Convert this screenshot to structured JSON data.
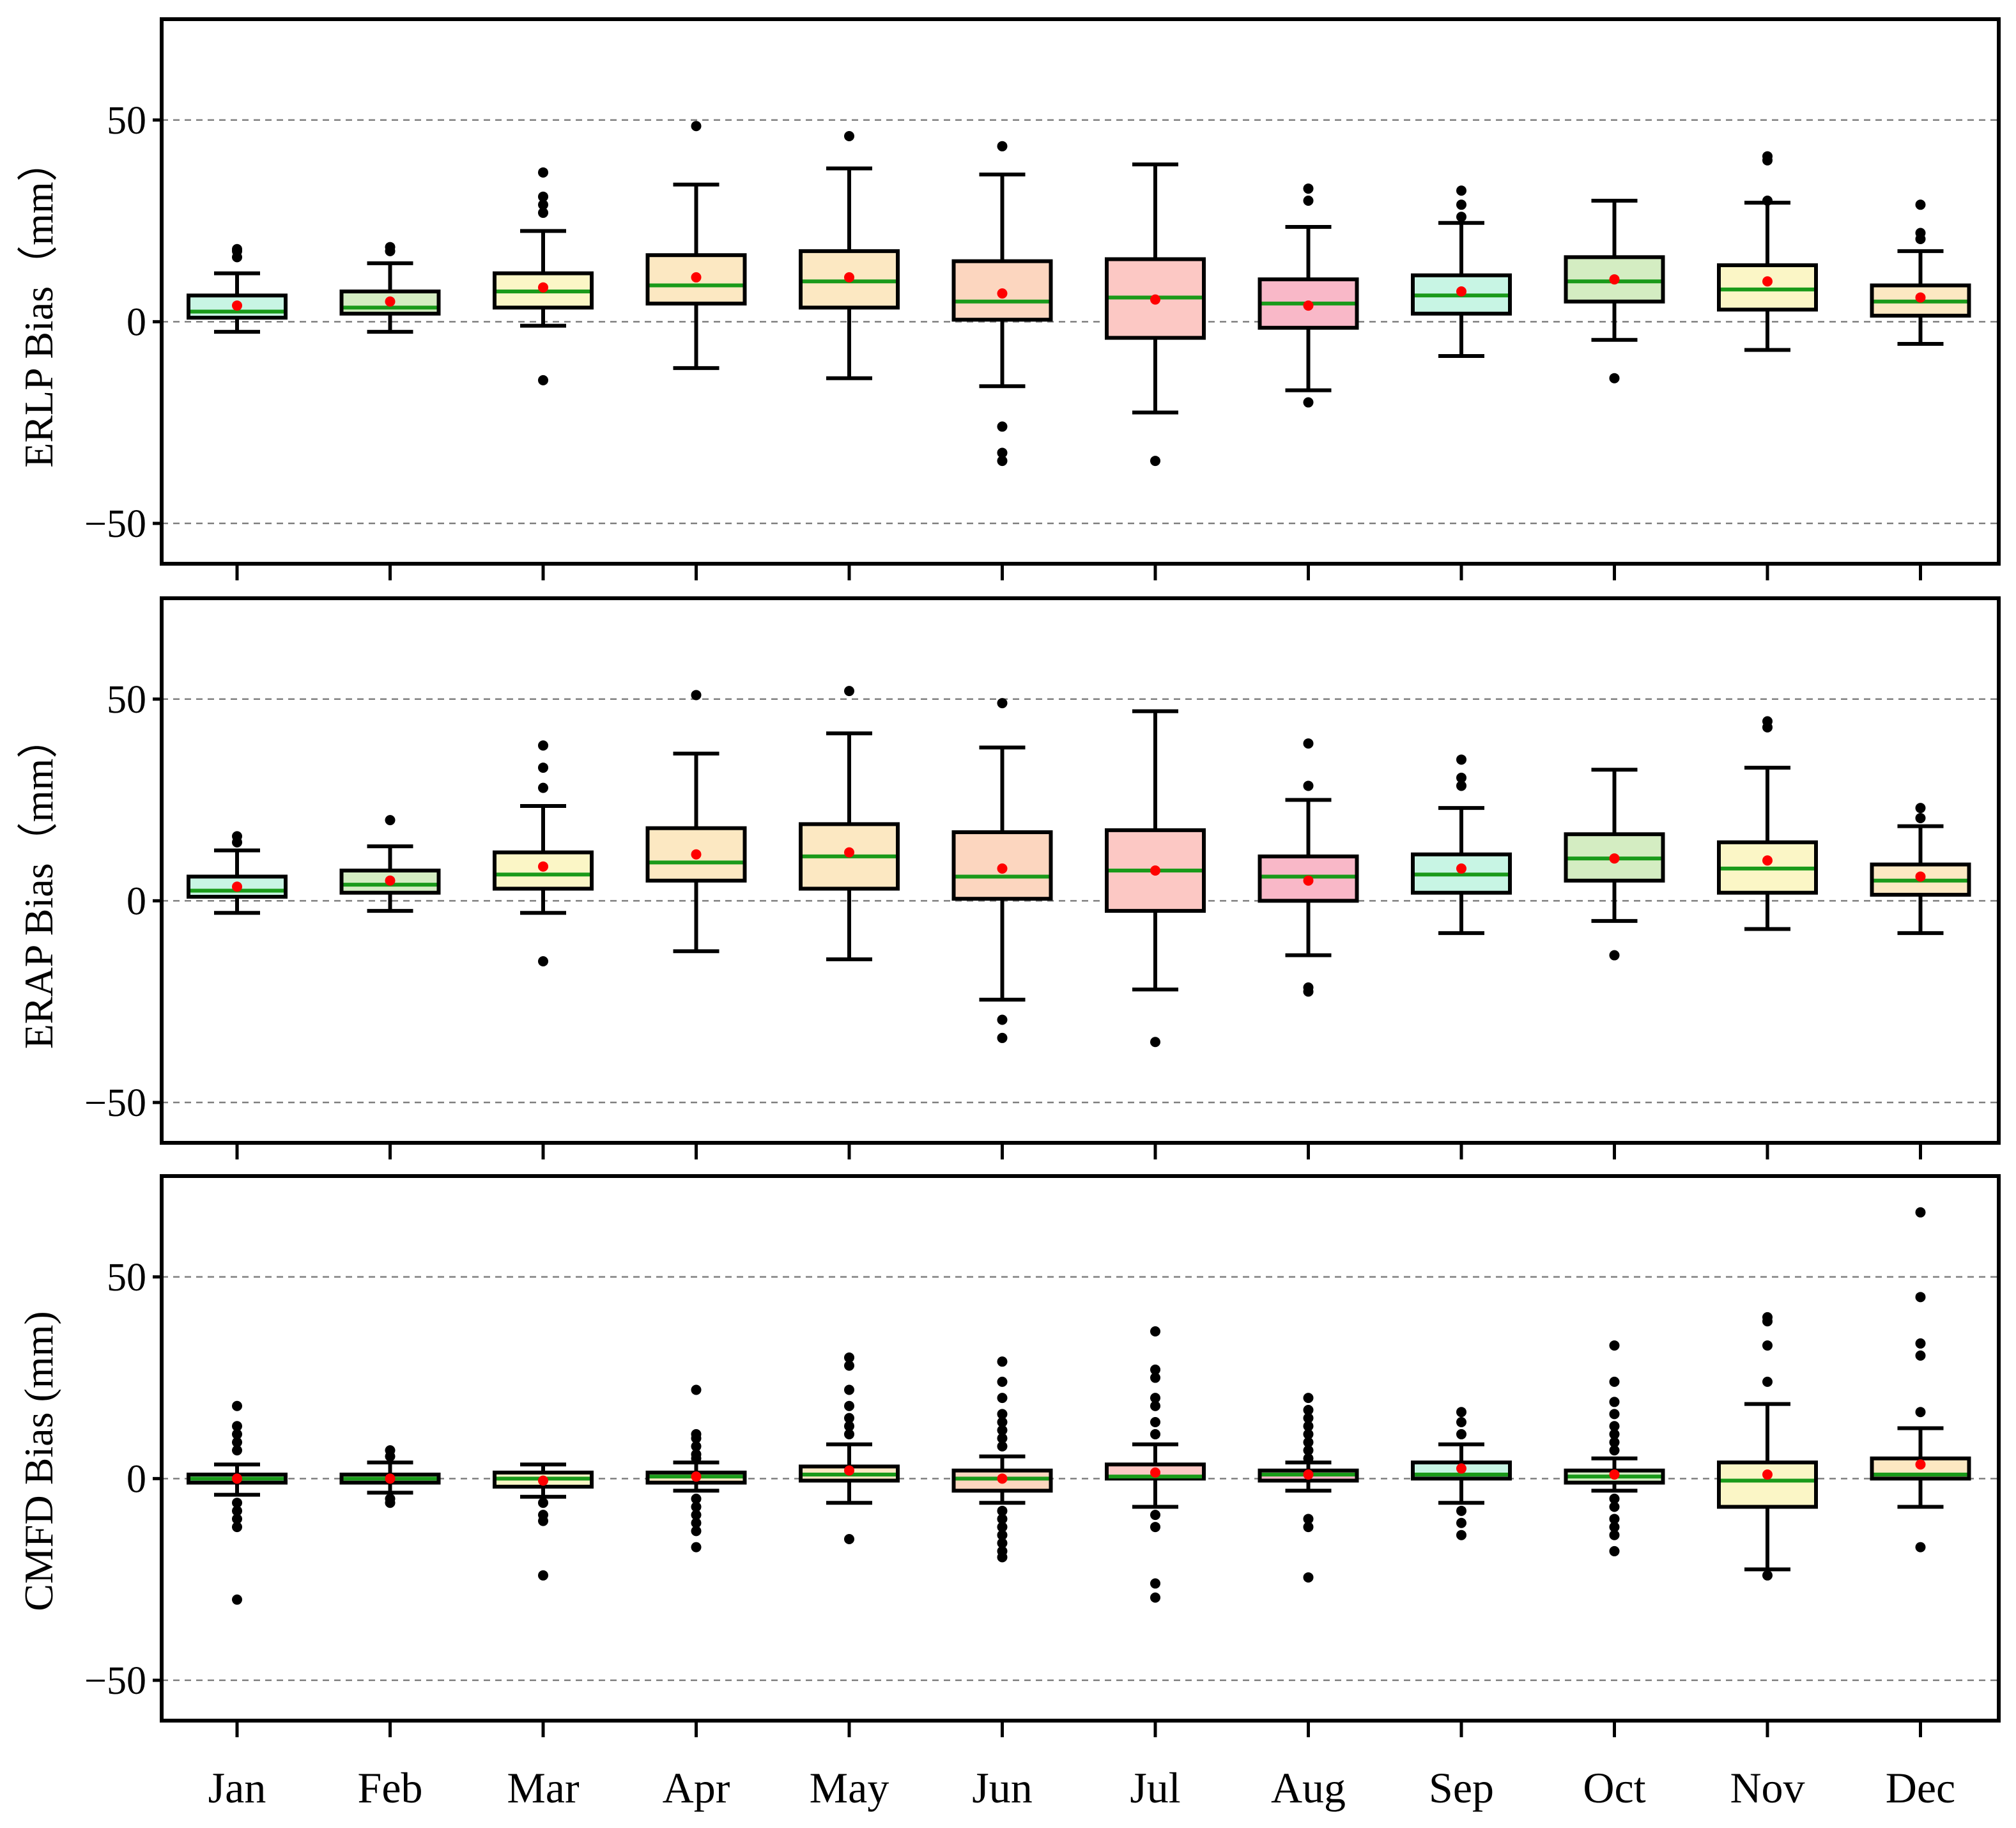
{
  "chart_data": {
    "type": "boxplot",
    "categories": [
      "Jan",
      "Feb",
      "Mar",
      "Apr",
      "May",
      "Jun",
      "Jul",
      "Aug",
      "Sep",
      "Oct",
      "Nov",
      "Dec"
    ],
    "ylim": [
      -60,
      75
    ],
    "yticks": [
      -50,
      0,
      50
    ],
    "ytick_labels": [
      "−50",
      "0",
      "50"
    ],
    "grid": "dashed at -50, 0, 50",
    "colors": {
      "median": "#1a9a1a",
      "mean": "#ff0000",
      "outlier": "#000000",
      "box_edge": "#000000",
      "gridline": "#808080"
    },
    "panels": [
      {
        "ylabel": "ERLP Bias（mm）",
        "boxes": [
          {
            "month": "Jan",
            "q1": 1,
            "median": 2.5,
            "q3": 6.5,
            "mean": 4,
            "whisker_low": -2.5,
            "whisker_high": 12,
            "outliers": [
              16,
              17.5,
              18
            ],
            "color": "#c8f5e4"
          },
          {
            "month": "Feb",
            "q1": 2,
            "median": 3.5,
            "q3": 7.5,
            "mean": 5,
            "whisker_low": -2.5,
            "whisker_high": 14.5,
            "outliers": [
              17.5,
              18.5
            ],
            "color": "#d4edc2"
          },
          {
            "month": "Mar",
            "q1": 3.5,
            "median": 7.5,
            "q3": 12,
            "mean": 8.5,
            "whisker_low": -1,
            "whisker_high": 22.5,
            "outliers": [
              27,
              29,
              31,
              37,
              -14.5
            ],
            "color": "#fbf6c6"
          },
          {
            "month": "Apr",
            "q1": 4.5,
            "median": 9,
            "q3": 16.5,
            "mean": 11,
            "whisker_low": -11.5,
            "whisker_high": 34,
            "outliers": [
              48.5
            ],
            "color": "#fce8c2"
          },
          {
            "month": "May",
            "q1": 3.5,
            "median": 10,
            "q3": 17.5,
            "mean": 11,
            "whisker_low": -14,
            "whisker_high": 38,
            "outliers": [
              46
            ],
            "color": "#fce8c2"
          },
          {
            "month": "Jun",
            "q1": 0.5,
            "median": 5,
            "q3": 15,
            "mean": 7,
            "whisker_low": -16,
            "whisker_high": 36.5,
            "outliers": [
              43.5,
              -26,
              -32.5,
              -34.5
            ],
            "color": "#fcd6bf"
          },
          {
            "month": "Jul",
            "q1": -4,
            "median": 6,
            "q3": 15.5,
            "mean": 5.5,
            "whisker_low": -22.5,
            "whisker_high": 39,
            "outliers": [
              -34.5
            ],
            "color": "#fcc8c4"
          },
          {
            "month": "Aug",
            "q1": -1.5,
            "median": 4.5,
            "q3": 10.5,
            "mean": 4,
            "whisker_low": -17,
            "whisker_high": 23.5,
            "outliers": [
              30,
              33,
              -20
            ],
            "color": "#f9b8c8"
          },
          {
            "month": "Sep",
            "q1": 2,
            "median": 6.5,
            "q3": 11.5,
            "mean": 7.5,
            "whisker_low": -8.5,
            "whisker_high": 24.5,
            "outliers": [
              26,
              29,
              32.5
            ],
            "color": "#c8f5e4"
          },
          {
            "month": "Oct",
            "q1": 5,
            "median": 10,
            "q3": 16,
            "mean": 10.5,
            "whisker_low": -4.5,
            "whisker_high": 30,
            "outliers": [
              -14
            ],
            "color": "#d4edc2"
          },
          {
            "month": "Nov",
            "q1": 3,
            "median": 8,
            "q3": 14,
            "mean": 10,
            "whisker_low": -7,
            "whisker_high": 29.5,
            "outliers": [
              30,
              40,
              41
            ],
            "color": "#fbf6c6"
          },
          {
            "month": "Dec",
            "q1": 1.5,
            "median": 5,
            "q3": 9,
            "mean": 6,
            "whisker_low": -5.5,
            "whisker_high": 17.5,
            "outliers": [
              20.5,
              22,
              29
            ],
            "color": "#fce8c2"
          }
        ]
      },
      {
        "ylabel": "ERAP Bias（mm）",
        "boxes": [
          {
            "month": "Jan",
            "q1": 1,
            "median": 2.5,
            "q3": 6,
            "mean": 3.5,
            "whisker_low": -3,
            "whisker_high": 12.5,
            "outliers": [
              14.5,
              16
            ],
            "color": "#c8f5e4"
          },
          {
            "month": "Feb",
            "q1": 2,
            "median": 4,
            "q3": 7.5,
            "mean": 5,
            "whisker_low": -2.5,
            "whisker_high": 13.5,
            "outliers": [
              20
            ],
            "color": "#d4edc2"
          },
          {
            "month": "Mar",
            "q1": 3,
            "median": 6.5,
            "q3": 12,
            "mean": 8.5,
            "whisker_low": -3,
            "whisker_high": 23.5,
            "outliers": [
              28,
              33,
              38.5,
              -15
            ],
            "color": "#fbf6c6"
          },
          {
            "month": "Apr",
            "q1": 5,
            "median": 9.5,
            "q3": 18,
            "mean": 11.5,
            "whisker_low": -12.5,
            "whisker_high": 36.5,
            "outliers": [
              51
            ],
            "color": "#fce8c2"
          },
          {
            "month": "May",
            "q1": 3,
            "median": 11,
            "q3": 19,
            "mean": 12,
            "whisker_low": -14.5,
            "whisker_high": 41.5,
            "outliers": [
              52
            ],
            "color": "#fce8c2"
          },
          {
            "month": "Jun",
            "q1": 0.5,
            "median": 6,
            "q3": 17,
            "mean": 8,
            "whisker_low": -24.5,
            "whisker_high": 38,
            "outliers": [
              49,
              -29.5,
              -34
            ],
            "color": "#fcd6bf"
          },
          {
            "month": "Jul",
            "q1": -2.5,
            "median": 7.5,
            "q3": 17.5,
            "mean": 7.5,
            "whisker_low": -22,
            "whisker_high": 47,
            "outliers": [
              -35
            ],
            "color": "#fcc8c4"
          },
          {
            "month": "Aug",
            "q1": 0,
            "median": 6,
            "q3": 11,
            "mean": 5,
            "whisker_low": -13.5,
            "whisker_high": 25,
            "outliers": [
              28.5,
              39,
              -21.5,
              -22.5
            ],
            "color": "#f9b8c8"
          },
          {
            "month": "Sep",
            "q1": 2,
            "median": 6.5,
            "q3": 11.5,
            "mean": 8,
            "whisker_low": -8,
            "whisker_high": 23,
            "outliers": [
              28.5,
              30.5,
              35
            ],
            "color": "#c8f5e4"
          },
          {
            "month": "Oct",
            "q1": 5,
            "median": 10.5,
            "q3": 16.5,
            "mean": 10.5,
            "whisker_low": -5,
            "whisker_high": 32.5,
            "outliers": [
              -13.5
            ],
            "color": "#d4edc2"
          },
          {
            "month": "Nov",
            "q1": 2,
            "median": 8,
            "q3": 14.5,
            "mean": 10,
            "whisker_low": -7,
            "whisker_high": 33,
            "outliers": [
              43,
              44.5
            ],
            "color": "#fbf6c6"
          },
          {
            "month": "Dec",
            "q1": 1.5,
            "median": 5,
            "q3": 9,
            "mean": 6,
            "whisker_low": -8,
            "whisker_high": 18.5,
            "outliers": [
              20.5,
              23
            ],
            "color": "#fce8c2"
          }
        ]
      },
      {
        "ylabel": "CMFD Bias (mm)",
        "boxes": [
          {
            "month": "Jan",
            "q1": -1,
            "median": 0,
            "q3": 1,
            "mean": 0,
            "whisker_low": -4,
            "whisker_high": 3.5,
            "outliers": [
              7,
              9,
              11,
              13,
              18,
              -6,
              -8,
              -10,
              -12,
              -30
            ],
            "color": "#c8f5e4"
          },
          {
            "month": "Feb",
            "q1": -1,
            "median": 0,
            "q3": 1,
            "mean": 0,
            "whisker_low": -3.5,
            "whisker_high": 4,
            "outliers": [
              5.5,
              7,
              -5,
              -6
            ],
            "color": "#d4edc2"
          },
          {
            "month": "Mar",
            "q1": -2,
            "median": 0,
            "q3": 1.5,
            "mean": -0.5,
            "whisker_low": -4.5,
            "whisker_high": 3.5,
            "outliers": [
              -6,
              -9,
              -10.5,
              -24
            ],
            "color": "#fbf6c6"
          },
          {
            "month": "Apr",
            "q1": -1,
            "median": 0.5,
            "q3": 1.5,
            "mean": 0.5,
            "whisker_low": -3,
            "whisker_high": 4,
            "outliers": [
              5,
              6,
              8,
              10,
              11,
              22,
              -5,
              -7,
              -9,
              -11,
              -13,
              -17
            ],
            "color": "#fce8c2"
          },
          {
            "month": "May",
            "q1": -0.5,
            "median": 1,
            "q3": 3,
            "mean": 2,
            "whisker_low": -6,
            "whisker_high": 8.5,
            "outliers": [
              11,
              13,
              15,
              18,
              22,
              28,
              30,
              -15
            ],
            "color": "#fce8c2"
          },
          {
            "month": "Jun",
            "q1": -3,
            "median": 0,
            "q3": 2,
            "mean": 0,
            "whisker_low": -6,
            "whisker_high": 5.5,
            "outliers": [
              8,
              10,
              12,
              14,
              16,
              20,
              24,
              29,
              -8,
              -10,
              -12,
              -14,
              -16,
              -18,
              -19.5
            ],
            "color": "#fcd6bf"
          },
          {
            "month": "Jul",
            "q1": 0,
            "median": 0.5,
            "q3": 3.5,
            "mean": 1.5,
            "whisker_low": -7,
            "whisker_high": 8.5,
            "outliers": [
              11,
              14,
              18,
              20,
              25,
              27,
              36.5,
              -9,
              -12,
              -26,
              -29.5
            ],
            "color": "#fcc8c4"
          },
          {
            "month": "Aug",
            "q1": -0.5,
            "median": 1,
            "q3": 2,
            "mean": 1,
            "whisker_low": -3,
            "whisker_high": 4,
            "outliers": [
              5,
              7,
              9,
              11,
              13,
              15,
              17,
              20,
              -10,
              -12,
              -24.5
            ],
            "color": "#f9b8c8"
          },
          {
            "month": "Sep",
            "q1": 0,
            "median": 1,
            "q3": 4,
            "mean": 2.5,
            "whisker_low": -6,
            "whisker_high": 8.5,
            "outliers": [
              11,
              14,
              16.5,
              -8,
              -11,
              -14
            ],
            "color": "#c8f5e4"
          },
          {
            "month": "Oct",
            "q1": -1,
            "median": 0.5,
            "q3": 2,
            "mean": 1,
            "whisker_low": -3,
            "whisker_high": 5,
            "outliers": [
              7,
              9,
              11,
              13,
              16,
              19,
              24,
              33,
              -5,
              -7,
              -10,
              -12,
              -14,
              -18
            ],
            "color": "#d4edc2"
          },
          {
            "month": "Nov",
            "q1": -7,
            "median": -0.5,
            "q3": 4,
            "mean": 1,
            "whisker_low": -22.5,
            "whisker_high": 18.5,
            "outliers": [
              24,
              33,
              39,
              40,
              -24
            ],
            "color": "#fbf6c6"
          },
          {
            "month": "Dec",
            "q1": 0,
            "median": 1,
            "q3": 5,
            "mean": 3.5,
            "whisker_low": -7,
            "whisker_high": 12.5,
            "outliers": [
              16.5,
              30.5,
              33.5,
              45,
              66,
              -17
            ],
            "color": "#fce8c2"
          }
        ]
      }
    ]
  }
}
